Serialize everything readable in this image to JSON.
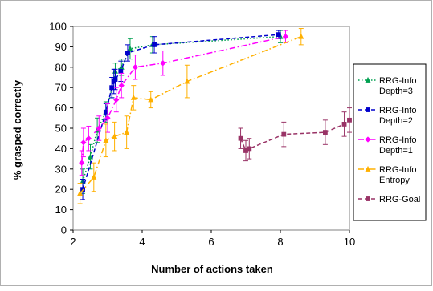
{
  "chart_data": {
    "type": "line",
    "title": "",
    "xlabel": "Number of actions taken",
    "ylabel": "% grasped correctly",
    "xlim": [
      2,
      10
    ],
    "ylim": [
      0,
      100
    ],
    "xticks": [
      "2",
      "4",
      "6",
      "8",
      "10"
    ],
    "yticks": [
      "0",
      "10",
      "20",
      "30",
      "40",
      "50",
      "60",
      "70",
      "80",
      "90",
      "100"
    ],
    "grid": false,
    "legend_position": "right",
    "series": [
      {
        "name": "RRG-Info Depth=3",
        "color": "#00A050",
        "dash": "dotted",
        "marker": "triangle",
        "x": [
          2.28,
          2.5,
          2.7,
          2.95,
          3.13,
          3.22,
          3.4,
          3.65,
          4.3,
          8.0
        ],
        "y": [
          24,
          36,
          49,
          58,
          70,
          78,
          80,
          89,
          91,
          95
        ],
        "err": [
          6,
          6,
          6,
          5,
          5,
          4,
          4,
          5,
          4,
          3
        ]
      },
      {
        "name": "RRG-Info Depth=2",
        "color": "#0000CC",
        "dash": "dashed",
        "marker": "square",
        "x": [
          2.28,
          2.95,
          3.12,
          3.18,
          3.22,
          3.38,
          3.58,
          4.35,
          7.95
        ],
        "y": [
          20,
          58,
          70,
          73,
          74,
          78,
          87,
          91,
          96
        ],
        "err": [
          5,
          4,
          5,
          6,
          5,
          5,
          4,
          4,
          2
        ]
      },
      {
        "name": "RRG-Info Depth=1",
        "color": "#FF00FF",
        "dash": "dashdot",
        "marker": "diamond",
        "x": [
          2.25,
          2.3,
          2.45,
          2.75,
          3.0,
          3.25,
          3.4,
          3.8,
          4.6,
          8.15
        ],
        "y": [
          33,
          43,
          45,
          50,
          55,
          64,
          71,
          80,
          82,
          95
        ],
        "err": [
          6,
          7,
          6,
          6,
          7,
          6,
          6,
          6,
          6,
          3
        ]
      },
      {
        "name": "RRG-Info Entropy",
        "color": "#FFB000",
        "dash": "dashdot",
        "marker": "triangle",
        "x": [
          2.2,
          2.6,
          2.95,
          3.2,
          3.55,
          3.75,
          4.25,
          5.3,
          8.6
        ],
        "y": [
          18,
          26,
          44,
          46,
          48,
          65,
          64,
          73,
          95
        ],
        "err": [
          5,
          7,
          8,
          7,
          8,
          6,
          4,
          8,
          4
        ]
      },
      {
        "name": "RRG-Goal",
        "color": "#993366",
        "dash": "dashed",
        "marker": "square",
        "x": [
          6.85,
          7.0,
          7.1,
          8.1,
          9.3,
          9.85,
          10.0
        ],
        "y": [
          45,
          39,
          40,
          47,
          48,
          52,
          54
        ],
        "err": [
          5,
          5,
          5,
          6,
          6,
          6,
          6
        ]
      }
    ]
  }
}
